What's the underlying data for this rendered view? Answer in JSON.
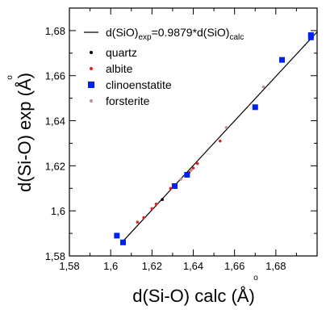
{
  "chart_data": {
    "type": "scatter",
    "xlabel": "d(Si-O) calc (Å)",
    "ylabel": "d(Si-O) exp (Å)",
    "xlim": [
      1.58,
      1.7
    ],
    "ylim": [
      1.58,
      1.69
    ],
    "x_ticks": [
      "1,58",
      "1,6",
      "1,62",
      "1,64",
      "1,66",
      "1,68"
    ],
    "y_ticks": [
      "1,58",
      "1,6",
      "1,62",
      "1,64",
      "1,66",
      "1,68"
    ],
    "grid": false,
    "legend_position": "top-left",
    "fit_line": {
      "label": "d(SiO)exp=0.9879*d(SiO)calc",
      "label_parts": {
        "base1": "d(SiO)",
        "sub1": "exp",
        "mid": "=0.9879*d(SiO)",
        "sub2": "calc"
      },
      "slope": 0.9879,
      "color": "#000000"
    },
    "series": [
      {
        "name": "quartz",
        "color": "#000000",
        "marker": "dot",
        "points": [
          [
            1.625,
            1.605
          ],
          [
            1.631,
            1.611
          ]
        ]
      },
      {
        "name": "albite",
        "color": "#dd2222",
        "marker": "dot",
        "points": [
          [
            1.613,
            1.595
          ],
          [
            1.616,
            1.597
          ],
          [
            1.62,
            1.601
          ],
          [
            1.622,
            1.603
          ],
          [
            1.629,
            1.61
          ],
          [
            1.638,
            1.617
          ],
          [
            1.64,
            1.619
          ],
          [
            1.642,
            1.621
          ],
          [
            1.653,
            1.631
          ]
        ]
      },
      {
        "name": "clinoenstatite",
        "color": "#0022ee",
        "marker": "square",
        "points": [
          [
            1.603,
            1.589
          ],
          [
            1.606,
            1.586
          ],
          [
            1.631,
            1.611
          ],
          [
            1.637,
            1.616
          ],
          [
            1.67,
            1.646
          ],
          [
            1.683,
            1.667
          ],
          [
            1.697,
            1.677
          ],
          [
            1.697,
            1.678
          ]
        ]
      },
      {
        "name": "forsterite",
        "color": "#c09090",
        "marker": "dot",
        "points": [
          [
            1.634,
            1.614
          ],
          [
            1.639,
            1.618
          ],
          [
            1.656,
            1.637
          ],
          [
            1.674,
            1.655
          ]
        ]
      }
    ]
  }
}
